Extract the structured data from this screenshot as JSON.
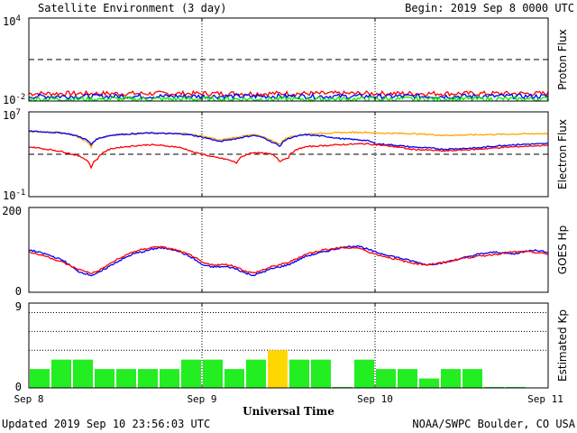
{
  "header": {
    "title": "Satellite Environment (3 day)",
    "begin": "Begin:  2019 Sep 8 0000 UTC"
  },
  "footer": {
    "updated": "Updated 2019 Sep 10 23:56:03 UTC",
    "credit": "NOAA/SWPC Boulder, CO USA"
  },
  "x_axis": {
    "label": "Universal Time",
    "ticks": [
      "Sep 8",
      "Sep 9",
      "Sep 10",
      "Sep 11"
    ]
  },
  "colors": {
    "red": "#ff0000",
    "blue": "#0000ff",
    "green": "#00ee00",
    "orange": "#ffa500",
    "yellow": "#ffd700",
    "kp_green": "#22ee22"
  },
  "chart_data": [
    {
      "type": "line",
      "ylabel": "Proton Flux",
      "yscale": "log",
      "ylim_exp": [
        -2,
        4
      ],
      "ytick_labels": [
        {
          "base": "10",
          "exp": "4"
        },
        {
          "base": "10",
          "exp": "-2"
        }
      ],
      "threshold": 10,
      "xlim_days": [
        0,
        3
      ],
      "series": [
        {
          "color": "red",
          "level": 0.035
        },
        {
          "color": "blue",
          "level": 0.022
        },
        {
          "color": "green",
          "level": 0.014
        }
      ]
    },
    {
      "type": "line",
      "ylabel": "Electron Flux",
      "yscale": "log",
      "ylim_exp": [
        -1,
        7
      ],
      "ytick_labels": [
        {
          "base": "10",
          "exp": "7"
        },
        {
          "base": "10",
          "exp": "-1"
        }
      ],
      "threshold": 1000,
      "xlim_days": [
        0,
        3
      ],
      "series": [
        {
          "color": "orange",
          "x": [
            0,
            0.2,
            0.3,
            0.36,
            0.4,
            0.5,
            0.7,
            0.9,
            1.0,
            1.1,
            1.2,
            1.3,
            1.4,
            1.45,
            1.5,
            1.6,
            1.8,
            1.95,
            2.0,
            2.2,
            2.4,
            2.6,
            2.8,
            3.0
          ],
          "y": [
            150000,
            100000,
            30000,
            4000,
            30000,
            70000,
            100000,
            90000,
            50000,
            20000,
            40000,
            70000,
            20000,
            8000,
            40000,
            80000,
            110000,
            120000,
            100000,
            90000,
            60000,
            70000,
            80000,
            90000
          ]
        },
        {
          "color": "blue",
          "x": [
            0,
            0.2,
            0.3,
            0.36,
            0.4,
            0.5,
            0.7,
            0.9,
            1.0,
            1.1,
            1.2,
            1.3,
            1.4,
            1.45,
            1.5,
            1.6,
            1.8,
            1.95,
            2.0,
            2.2,
            2.4,
            2.6,
            2.8,
            3.0
          ],
          "y": [
            150000,
            100000,
            40000,
            8000,
            30000,
            70000,
            100000,
            80000,
            40000,
            15000,
            30000,
            60000,
            15000,
            5000,
            30000,
            70000,
            30000,
            20000,
            10000,
            5000,
            3000,
            4000,
            8000,
            10000
          ]
        },
        {
          "color": "red",
          "x": [
            0,
            0.1,
            0.25,
            0.36,
            0.4,
            0.5,
            0.7,
            0.85,
            0.95,
            1.05,
            1.15,
            1.2,
            1.3,
            1.4,
            1.45,
            1.5,
            1.6,
            1.8,
            1.95,
            2.0,
            2.2,
            2.4,
            2.6,
            2.8,
            3.0
          ],
          "y": [
            5000,
            3000,
            1000,
            50,
            400,
            4000,
            8000,
            5000,
            1500,
            600,
            300,
            150,
            1500,
            1000,
            200,
            500,
            5000,
            8000,
            10000,
            8000,
            3000,
            2000,
            3000,
            5000,
            7000
          ]
        }
      ]
    },
    {
      "type": "line",
      "ylabel": "GOES Hp",
      "ylim": [
        0,
        200
      ],
      "ytick_labels": [
        "200",
        "0"
      ],
      "xlim_days": [
        0,
        3
      ],
      "series": [
        {
          "color": "blue",
          "x": [
            0,
            0.1,
            0.2,
            0.28,
            0.36,
            0.4,
            0.5,
            0.6,
            0.7,
            0.75,
            0.85,
            0.95,
            1.0,
            1.05,
            1.15,
            1.2,
            1.25,
            1.3,
            1.4,
            1.5,
            1.6,
            1.7,
            1.8,
            1.9,
            2.0,
            2.2,
            2.3,
            2.4,
            2.5,
            2.6,
            2.7,
            2.8,
            2.9,
            3.0
          ],
          "y": [
            100,
            90,
            75,
            50,
            40,
            45,
            70,
            90,
            100,
            105,
            100,
            80,
            65,
            60,
            60,
            55,
            45,
            40,
            55,
            65,
            85,
            95,
            105,
            110,
            95,
            75,
            65,
            70,
            80,
            90,
            95,
            90,
            100,
            95
          ]
        },
        {
          "color": "red",
          "x": [
            0,
            0.1,
            0.2,
            0.28,
            0.36,
            0.4,
            0.5,
            0.6,
            0.7,
            0.75,
            0.85,
            0.95,
            1.0,
            1.05,
            1.15,
            1.2,
            1.25,
            1.3,
            1.4,
            1.5,
            1.6,
            1.7,
            1.8,
            1.9,
            2.0,
            2.2,
            2.3,
            2.4,
            2.5,
            2.6,
            2.7,
            2.8,
            2.9,
            3.0
          ],
          "y": [
            95,
            85,
            70,
            55,
            45,
            50,
            75,
            95,
            105,
            108,
            100,
            85,
            70,
            65,
            65,
            60,
            50,
            45,
            60,
            70,
            90,
            100,
            105,
            105,
            90,
            70,
            65,
            70,
            80,
            85,
            90,
            95,
            95,
            90
          ]
        }
      ]
    },
    {
      "type": "bar",
      "ylabel": "Estimated Kp",
      "ylim": [
        0,
        9
      ],
      "ytick_labels": [
        "9",
        "0"
      ],
      "gridlines": [
        4,
        6,
        8
      ],
      "interval_hours": 3,
      "values": [
        2,
        3,
        3,
        2,
        2,
        2,
        2,
        3,
        3,
        2,
        3,
        4,
        3,
        3,
        0.1,
        3,
        2,
        2,
        1,
        2,
        2,
        0.1,
        0.1,
        0
      ],
      "bar_colors": [
        "kp_green",
        "kp_green",
        "kp_green",
        "kp_green",
        "kp_green",
        "kp_green",
        "kp_green",
        "kp_green",
        "kp_green",
        "kp_green",
        "kp_green",
        "yellow",
        "kp_green",
        "kp_green",
        "kp_green",
        "kp_green",
        "kp_green",
        "kp_green",
        "kp_green",
        "kp_green",
        "kp_green",
        "kp_green",
        "kp_green",
        "kp_green"
      ]
    }
  ]
}
